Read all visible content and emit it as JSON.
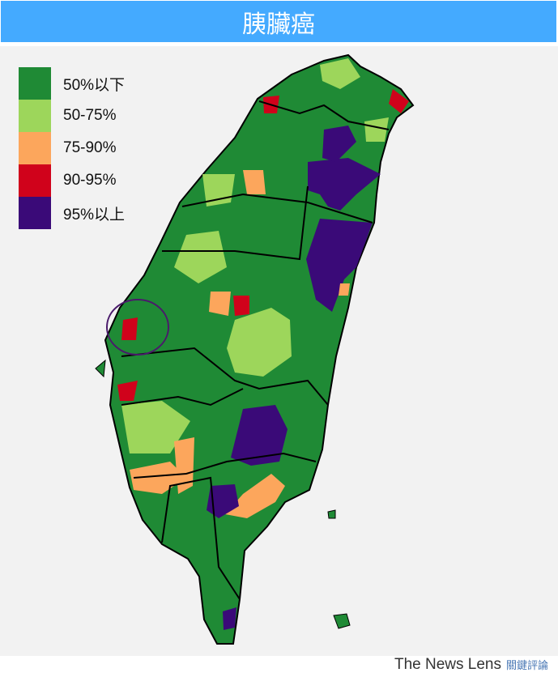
{
  "title": "胰臟癌",
  "legend": [
    {
      "label": "50%以下",
      "color": "#1f8a35"
    },
    {
      "label": "50-75%",
      "color": "#9dd65b"
    },
    {
      "label": "75-90%",
      "color": "#fca65c"
    },
    {
      "label": "90-95%",
      "color": "#d0021b"
    },
    {
      "label": "95%以上",
      "color": "#3a0a78"
    }
  ],
  "colors": {
    "title_bar": "#44aaff",
    "background": "#f2f2f2",
    "border": "#000000",
    "highlight_circle": "#4a1a6b"
  },
  "logo": {
    "en": "The News Lens",
    "cn": "關鍵評論"
  }
}
